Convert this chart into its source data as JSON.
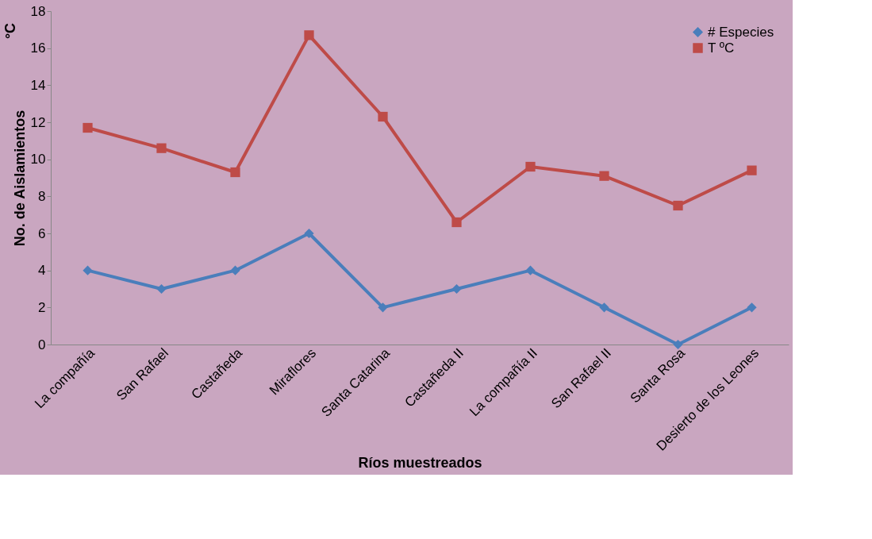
{
  "chart_data": {
    "type": "line",
    "xlabel": "Ríos muestreados",
    "ylabel": "No. de Aislamientos",
    "annotations": [
      "°C"
    ],
    "categories": [
      "La compañía",
      "San Rafael",
      "Castañeda",
      "Miraflores",
      "Santa Catarina",
      "Castañeda II",
      "La compañía II",
      "San Rafael II",
      "Santa Rosa",
      "Desierto de los Leones"
    ],
    "series": [
      {
        "name": "# Especies",
        "color": "#4a7ebb",
        "marker": "diamond",
        "values": [
          4,
          3,
          4,
          6,
          2,
          3,
          4,
          2,
          0,
          2
        ]
      },
      {
        "name": "T ºC",
        "color": "#be4b48",
        "marker": "square",
        "values": [
          11.7,
          10.6,
          9.3,
          16.7,
          12.3,
          6.6,
          9.6,
          9.1,
          7.5,
          9.4
        ]
      }
    ],
    "ylim": [
      0,
      18
    ],
    "yticks": [
      0,
      2,
      4,
      6,
      8,
      10,
      12,
      14,
      16,
      18
    ],
    "grid": false,
    "legend": "top right",
    "line_style": "solid"
  }
}
